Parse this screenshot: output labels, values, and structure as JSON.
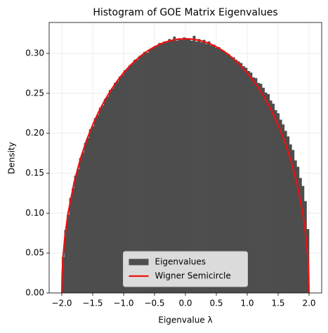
{
  "chart_data": {
    "type": "histogram",
    "title": "Histogram of GOE Matrix Eigenvalues",
    "xlabel": "Eigenvalue λ",
    "ylabel": "Density",
    "xlim": [
      -2.2045,
      2.2045
    ],
    "ylim": [
      0,
      0.3387
    ],
    "xticks": [
      {
        "value": -2,
        "label": "−2.0"
      },
      {
        "value": -1.5,
        "label": "−1.5"
      },
      {
        "value": -1,
        "label": "−1.0"
      },
      {
        "value": -0.5,
        "label": "−0.5"
      },
      {
        "value": 0,
        "label": "0.0"
      },
      {
        "value": 0.5,
        "label": "0.5"
      },
      {
        "value": 1,
        "label": "1.0"
      },
      {
        "value": 1.5,
        "label": "1.5"
      },
      {
        "value": 2,
        "label": "2.0"
      }
    ],
    "yticks": [
      {
        "value": 0,
        "label": "0.00"
      },
      {
        "value": 0.05,
        "label": "0.05"
      },
      {
        "value": 0.1,
        "label": "0.10"
      },
      {
        "value": 0.15,
        "label": "0.15"
      },
      {
        "value": 0.2,
        "label": "0.20"
      },
      {
        "value": 0.25,
        "label": "0.25"
      },
      {
        "value": 0.3,
        "label": "0.30"
      }
    ],
    "grid": true,
    "legend": "lower center",
    "bins": [
      -2,
      -1.96,
      -1.92,
      -1.88,
      -1.84,
      -1.8,
      -1.76,
      -1.72,
      -1.68,
      -1.64,
      -1.6,
      -1.56,
      -1.52,
      -1.48,
      -1.44,
      -1.4,
      -1.36,
      -1.32,
      -1.28,
      -1.24,
      -1.2,
      -1.16,
      -1.12,
      -1.08,
      -1.04,
      -1,
      -0.96,
      -0.92,
      -0.88,
      -0.84,
      -0.8,
      -0.76,
      -0.72,
      -0.68,
      -0.64,
      -0.6,
      -0.56,
      -0.52,
      -0.48,
      -0.44,
      -0.4,
      -0.36,
      -0.32,
      -0.28,
      -0.24,
      -0.2,
      -0.16,
      -0.12,
      -0.08,
      -0.04,
      0,
      0.04,
      0.08,
      0.12,
      0.16,
      0.2,
      0.24,
      0.28,
      0.32,
      0.36,
      0.4,
      0.44,
      0.48,
      0.52,
      0.56,
      0.6,
      0.64,
      0.68,
      0.72,
      0.76,
      0.8,
      0.84,
      0.88,
      0.92,
      0.96,
      1,
      1.04,
      1.08,
      1.12,
      1.16,
      1.2,
      1.24,
      1.28,
      1.32,
      1.36,
      1.4,
      1.44,
      1.48,
      1.52,
      1.56,
      1.6,
      1.64,
      1.68,
      1.72,
      1.76,
      1.8,
      1.84,
      1.88,
      1.92,
      1.96,
      2
    ],
    "series": [
      {
        "name": "Eigenvalues",
        "type": "histogram",
        "color": "#4d4d4d",
        "values": [
          0.045,
          0.079,
          0.098,
          0.119,
          0.131,
          0.147,
          0.155,
          0.169,
          0.176,
          0.188,
          0.194,
          0.205,
          0.209,
          0.219,
          0.223,
          0.232,
          0.235,
          0.243,
          0.246,
          0.254,
          0.256,
          0.263,
          0.265,
          0.271,
          0.273,
          0.279,
          0.281,
          0.285,
          0.287,
          0.292,
          0.292,
          0.297,
          0.298,
          0.302,
          0.301,
          0.305,
          0.306,
          0.309,
          0.309,
          0.313,
          0.312,
          0.315,
          0.314,
          0.318,
          0.316,
          0.321,
          0.316,
          0.319,
          0.317,
          0.32,
          0.318,
          0.319,
          0.316,
          0.322,
          0.315,
          0.318,
          0.314,
          0.317,
          0.312,
          0.315,
          0.31,
          0.311,
          0.307,
          0.308,
          0.304,
          0.303,
          0.301,
          0.299,
          0.296,
          0.295,
          0.292,
          0.29,
          0.288,
          0.284,
          0.282,
          0.278,
          0.276,
          0.27,
          0.269,
          0.263,
          0.262,
          0.257,
          0.251,
          0.249,
          0.241,
          0.237,
          0.229,
          0.225,
          0.217,
          0.211,
          0.203,
          0.196,
          0.186,
          0.179,
          0.166,
          0.158,
          0.144,
          0.134,
          0.115,
          0.08
        ]
      },
      {
        "name": "Wigner Semicircle",
        "type": "line",
        "color": "#ee1111",
        "x": [
          -2,
          -1.995,
          -1.98,
          -1.95,
          -1.9,
          -1.8,
          -1.7,
          -1.6,
          -1.5,
          -1.4,
          -1.3,
          -1.2,
          -1.1,
          -1,
          -0.9,
          -0.8,
          -0.7,
          -0.6,
          -0.5,
          -0.4,
          -0.3,
          -0.2,
          -0.1,
          0,
          0.1,
          0.2,
          0.3,
          0.4,
          0.5,
          0.6,
          0.7,
          0.8,
          0.9,
          1,
          1.1,
          1.2,
          1.3,
          1.4,
          1.5,
          1.6,
          1.7,
          1.8,
          1.9,
          1.95,
          1.98,
          1.995,
          2
        ],
        "values": [
          0,
          0.0225,
          0.0449,
          0.0707,
          0.0994,
          0.1387,
          0.1677,
          0.191,
          0.2105,
          0.2273,
          0.2419,
          0.2546,
          0.2658,
          0.2757,
          0.2843,
          0.2917,
          0.2982,
          0.3037,
          0.3082,
          0.3119,
          0.3147,
          0.3167,
          0.3179,
          0.3183,
          0.3179,
          0.3167,
          0.3147,
          0.3119,
          0.3082,
          0.3037,
          0.2982,
          0.2917,
          0.2843,
          0.2757,
          0.2658,
          0.2546,
          0.2419,
          0.2273,
          0.2105,
          0.191,
          0.1677,
          0.1387,
          0.0994,
          0.0707,
          0.0449,
          0.0225,
          0
        ]
      }
    ]
  }
}
